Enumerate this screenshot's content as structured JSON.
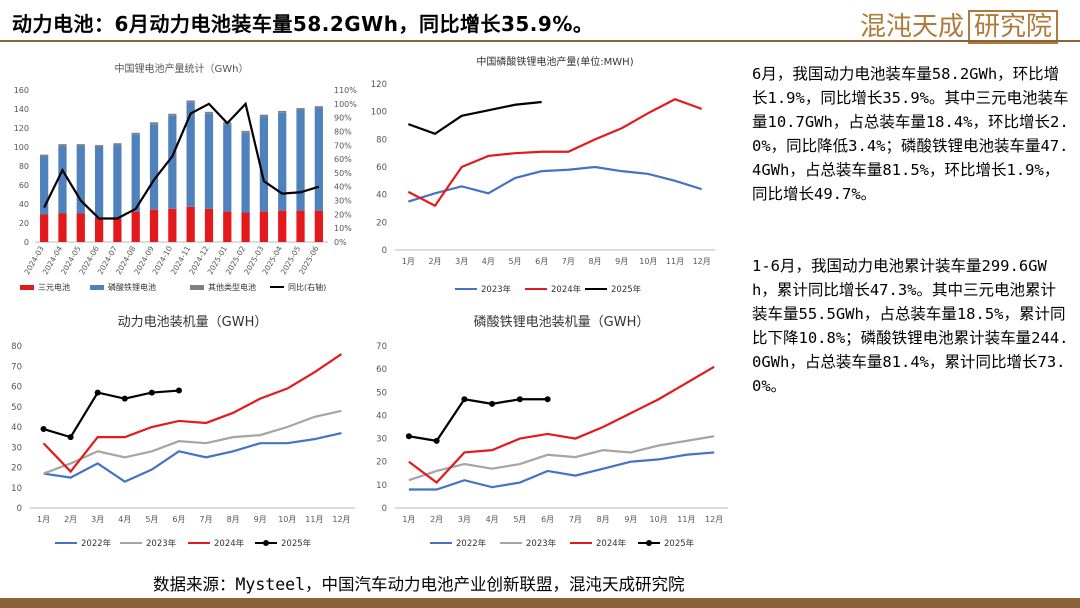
{
  "header": {
    "title": "动力电池：6月动力电池装车量58.2GWh，同比增长35.9%。",
    "logo_text": "混沌天成",
    "logo_boxed": "研究院"
  },
  "summary": {
    "p1": "6月，我国动力电池装车量58.2GWh，环比增长1.9%，同比增长35.9%。其中三元电池装车量10.7GWh，占总装车量18.4%，环比增长2.0%，同比降低3.4%；磷酸铁锂电池装车量47.4GWh，占总装车量81.5%，环比增长1.9%，同比增长49.7%。",
    "p2": "1-6月，我国动力电池累计装车量299.6GWh，累计同比增长47.3%。其中三元电池累计装车量55.5GWh，占总装车量18.5%，累计同比下降10.8%；磷酸铁锂电池累计装车量244.0GWh，占总装车量81.4%，累计同比增长73.0%。"
  },
  "source": "数据来源：Mysteel，中国汽车动力电池产业创新联盟，混沌天成研究院",
  "colors": {
    "ncm": "#e31a1c",
    "lfp": "#4f81bd",
    "other": "#808080",
    "yoy": "#000000",
    "y2022": "#4472c4",
    "y2023": "#a5a5a5",
    "y2024": "#e31a1c",
    "y2025": "#000000",
    "brand": "#8c6239"
  },
  "chart_data": [
    {
      "type": "bar",
      "title": "中国锂电池产量统计（GWh）",
      "stacked": true,
      "categories": [
        "2024-03",
        "2024-04",
        "2024-05",
        "2024-06",
        "2024-07",
        "2024-08",
        "2024-09",
        "2024-10",
        "2024-11",
        "2024-12",
        "2025-01",
        "2025-02",
        "2025-03",
        "2025-04",
        "2025-05",
        "2025-06"
      ],
      "series": [
        {
          "name": "三元电池",
          "values": [
            29,
            30,
            30,
            26,
            25,
            32,
            34,
            35,
            37,
            35,
            32,
            31,
            32,
            33,
            33,
            33
          ]
        },
        {
          "name": "磷酸铁锂电池",
          "values": [
            61,
            71,
            71,
            74,
            77,
            81,
            90,
            98,
            110,
            100,
            92,
            84,
            100,
            103,
            106,
            108
          ]
        },
        {
          "name": "其他类型电池",
          "values": [
            2,
            2,
            2,
            2,
            2,
            2,
            2,
            2,
            2,
            2,
            2,
            2,
            2,
            2,
            2,
            2
          ]
        }
      ],
      "line_series": {
        "name": "同比(右轴)",
        "values": [
          25,
          52,
          30,
          17,
          17,
          24,
          45,
          62,
          93,
          100,
          86,
          100,
          44,
          35,
          36,
          40
        ]
      },
      "ylim": [
        0,
        160
      ],
      "yticks": [
        0,
        20,
        40,
        60,
        80,
        100,
        120,
        140,
        160
      ],
      "y2lim": [
        0,
        110
      ],
      "y2ticks": [
        "0%",
        "10%",
        "20%",
        "30%",
        "40%",
        "50%",
        "60%",
        "70%",
        "80%",
        "90%",
        "100%",
        "110%"
      ],
      "legend": "bottom"
    },
    {
      "type": "line",
      "title": "中国磷酸铁锂电池产量(单位:MWH)",
      "categories": [
        "1月",
        "2月",
        "3月",
        "4月",
        "5月",
        "6月",
        "7月",
        "8月",
        "9月",
        "10月",
        "11月",
        "12月"
      ],
      "series": [
        {
          "name": "2023年",
          "values": [
            35,
            41,
            46,
            41,
            52,
            57,
            58,
            60,
            57,
            55,
            50,
            44
          ]
        },
        {
          "name": "2024年",
          "values": [
            42,
            32,
            60,
            68,
            70,
            71,
            71,
            80,
            88,
            99,
            109,
            102
          ]
        },
        {
          "name": "2025年",
          "values": [
            91,
            84,
            97,
            101,
            105,
            107,
            null,
            null,
            null,
            null,
            null,
            null
          ]
        }
      ],
      "ylim": [
        0,
        120
      ],
      "yticks": [
        0,
        20,
        40,
        60,
        80,
        100,
        120
      ],
      "legend": "bottom"
    },
    {
      "type": "line",
      "title": "动力电池装机量（GWH）",
      "categories": [
        "1月",
        "2月",
        "3月",
        "4月",
        "5月",
        "6月",
        "7月",
        "8月",
        "9月",
        "10月",
        "11月",
        "12月"
      ],
      "series": [
        {
          "name": "2022年",
          "values": [
            17,
            15,
            22,
            13,
            19,
            28,
            25,
            28,
            32,
            32,
            34,
            37
          ]
        },
        {
          "name": "2023年",
          "values": [
            17,
            22,
            28,
            25,
            28,
            33,
            32,
            35,
            36,
            40,
            45,
            48
          ]
        },
        {
          "name": "2024年",
          "values": [
            32,
            18,
            35,
            35,
            40,
            43,
            42,
            47,
            54,
            59,
            67,
            76
          ]
        },
        {
          "name": "2025年",
          "values": [
            39,
            35,
            57,
            54,
            57,
            58,
            null,
            null,
            null,
            null,
            null,
            null
          ]
        }
      ],
      "ylim": [
        0,
        80
      ],
      "yticks": [
        0,
        10,
        20,
        30,
        40,
        50,
        60,
        70,
        80
      ],
      "legend": "bottom"
    },
    {
      "type": "line",
      "title": "磷酸铁锂电池装机量（GWH）",
      "categories": [
        "1月",
        "2月",
        "3月",
        "4月",
        "5月",
        "6月",
        "7月",
        "8月",
        "9月",
        "10月",
        "11月",
        "12月"
      ],
      "series": [
        {
          "name": "2022年",
          "values": [
            8,
            8,
            12,
            9,
            11,
            16,
            14,
            17,
            20,
            21,
            23,
            24
          ]
        },
        {
          "name": "2023年",
          "values": [
            12,
            16,
            19,
            17,
            19,
            23,
            22,
            25,
            24,
            27,
            29,
            31
          ]
        },
        {
          "name": "2024年",
          "values": [
            20,
            11,
            24,
            25,
            30,
            32,
            30,
            35,
            41,
            47,
            54,
            61
          ]
        },
        {
          "name": "2025年",
          "values": [
            31,
            29,
            47,
            45,
            47,
            47,
            null,
            null,
            null,
            null,
            null,
            null
          ]
        }
      ],
      "ylim": [
        0,
        70
      ],
      "yticks": [
        0,
        10,
        20,
        30,
        40,
        50,
        60,
        70
      ],
      "legend": "bottom"
    }
  ]
}
